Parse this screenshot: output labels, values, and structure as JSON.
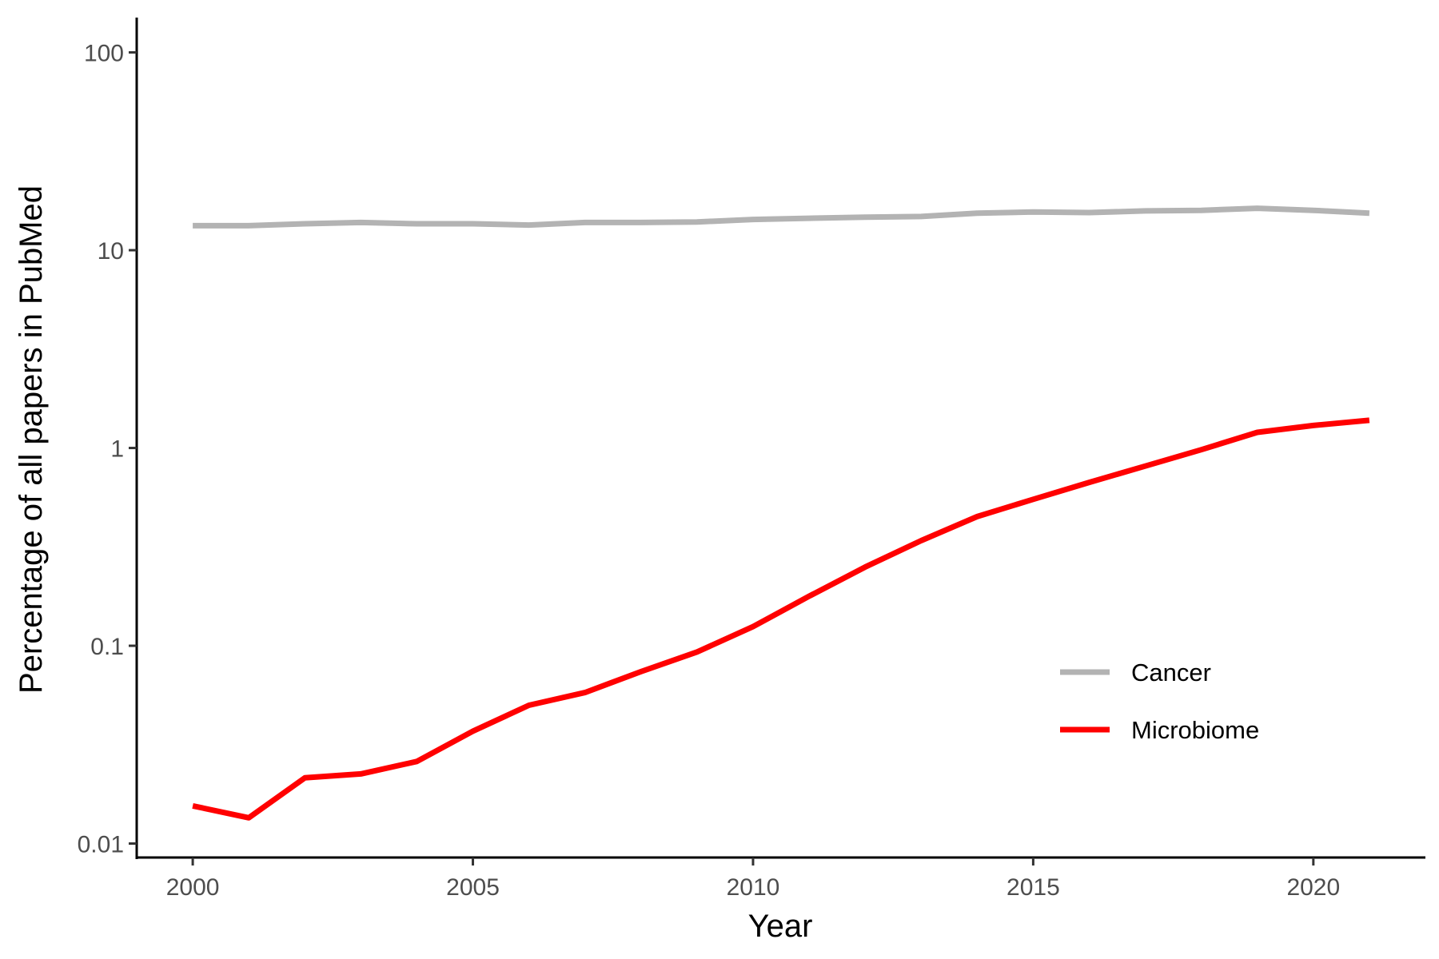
{
  "chart_data": {
    "type": "line",
    "title": "",
    "xlabel": "Year",
    "ylabel": "Percentage of all papers in PubMed",
    "x_scale": "linear",
    "y_scale": "log",
    "xlim": [
      1999,
      2022
    ],
    "ylim": [
      0.0085,
      150
    ],
    "x_ticks": [
      2000,
      2005,
      2010,
      2015,
      2020
    ],
    "x_tick_labels": [
      "2000",
      "2005",
      "2010",
      "2015",
      "2020"
    ],
    "y_ticks": [
      0.01,
      0.1,
      1,
      10,
      100
    ],
    "y_tick_labels": [
      "0.01",
      "0.1",
      "1",
      "10",
      "100"
    ],
    "grid": false,
    "legend_position": "bottom-right",
    "x": [
      2000,
      2001,
      2002,
      2003,
      2004,
      2005,
      2006,
      2007,
      2008,
      2009,
      2010,
      2011,
      2012,
      2013,
      2014,
      2015,
      2016,
      2017,
      2018,
      2019,
      2020,
      2021
    ],
    "series": [
      {
        "name": "Cancer",
        "color": "#b3b3b3",
        "values": [
          13.3,
          13.3,
          13.6,
          13.8,
          13.6,
          13.6,
          13.4,
          13.8,
          13.8,
          13.9,
          14.3,
          14.5,
          14.7,
          14.8,
          15.4,
          15.6,
          15.5,
          15.8,
          15.9,
          16.3,
          15.9,
          15.4
        ]
      },
      {
        "name": "Microbiome",
        "color": "#ff0000",
        "values": [
          0.0155,
          0.0135,
          0.0215,
          0.0225,
          0.026,
          0.037,
          0.05,
          0.058,
          0.074,
          0.093,
          0.125,
          0.178,
          0.25,
          0.34,
          0.45,
          0.55,
          0.67,
          0.81,
          0.98,
          1.2,
          1.3,
          1.38
        ]
      }
    ]
  }
}
